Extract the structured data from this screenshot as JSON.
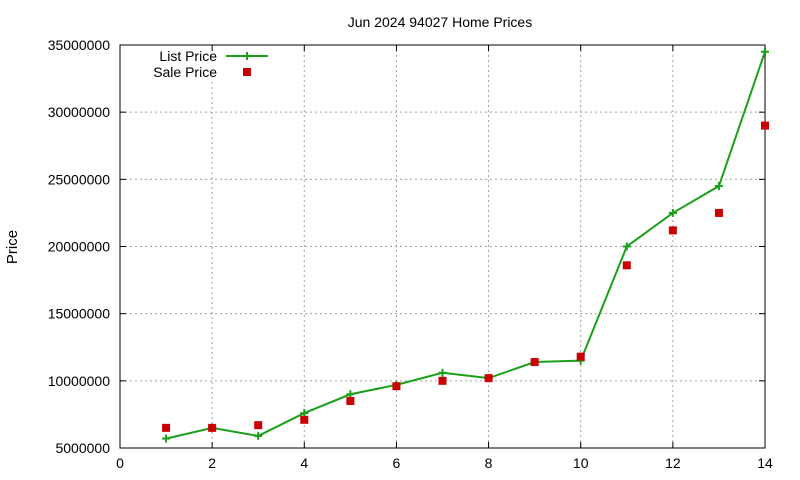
{
  "chart_data": {
    "type": "line",
    "title": "Jun 2024 94027 Home Prices",
    "xlabel": "",
    "ylabel": "Price",
    "xlim": [
      0,
      14
    ],
    "ylim": [
      5000000,
      35000000
    ],
    "xticks": [
      0,
      2,
      4,
      6,
      8,
      10,
      12,
      14
    ],
    "yticks": [
      5000000,
      10000000,
      15000000,
      20000000,
      25000000,
      30000000,
      35000000
    ],
    "grid": true,
    "legend_position": "top-left",
    "series": [
      {
        "name": "List Price",
        "style": "line+cross",
        "color": "#1aa01a",
        "x": [
          1,
          2,
          3,
          4,
          5,
          6,
          7,
          8,
          9,
          10,
          11,
          12,
          13,
          14
        ],
        "values": [
          5700000,
          6500000,
          5900000,
          7600000,
          9000000,
          9700000,
          10600000,
          10200000,
          11400000,
          11500000,
          20000000,
          22500000,
          24500000,
          34500000
        ]
      },
      {
        "name": "Sale Price",
        "style": "square",
        "color": "#cc0000",
        "x": [
          1,
          2,
          3,
          4,
          5,
          6,
          7,
          8,
          9,
          10,
          11,
          12,
          13,
          14
        ],
        "values": [
          6500000,
          6500000,
          6700000,
          7100000,
          8500000,
          9600000,
          10000000,
          10200000,
          11400000,
          11800000,
          18600000,
          21200000,
          22500000,
          29000000
        ]
      }
    ]
  }
}
